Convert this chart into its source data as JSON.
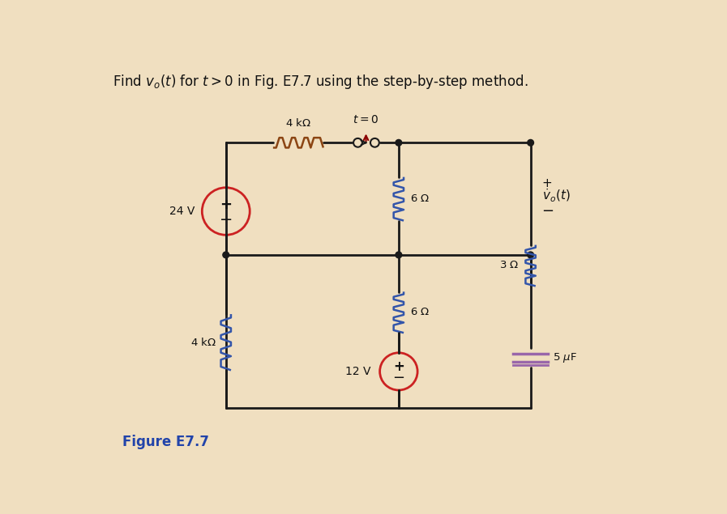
{
  "bg_color": "#f0dfc0",
  "title": "Find $v_o(t)$ for $t > 0$ in Fig. E7.7 using the step-by-step method.",
  "title_fontsize": 12.5,
  "figure_label": "Figure E7.7",
  "wire_color": "#1a1a1a",
  "resistor_color_brown": "#8B4513",
  "resistor_color_blue": "#3355aa",
  "source_color_red": "#cc2222",
  "text_color_blue": "#2244aa",
  "cap_color": "#9966aa"
}
